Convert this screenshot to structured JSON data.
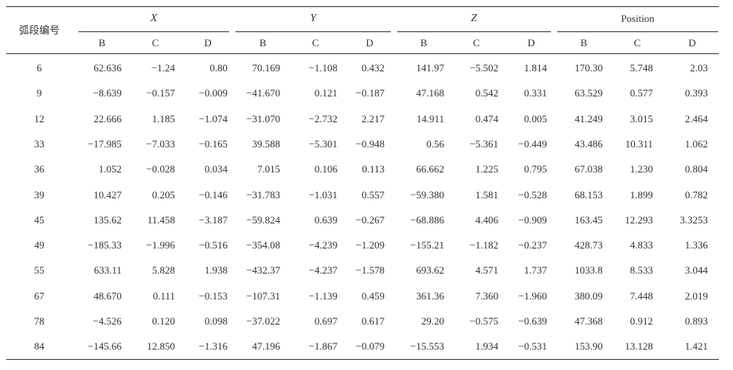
{
  "table": {
    "header": {
      "corner": "弧段编号",
      "groups": [
        {
          "label": "X",
          "columns": [
            "B",
            "C",
            "D"
          ]
        },
        {
          "label": "Y",
          "columns": [
            "B",
            "C",
            "D"
          ]
        },
        {
          "label": "Z",
          "columns": [
            "B",
            "C",
            "D"
          ]
        },
        {
          "label": "Position",
          "columns": [
            "B",
            "C",
            "D"
          ]
        }
      ]
    },
    "rows": [
      [
        "6",
        "62.636",
        "−1.24",
        "0.80",
        "70.169",
        "−1.108",
        "0.432",
        "141.97",
        "−5.502",
        "1.814",
        "170.30",
        "5.748",
        "2.03"
      ],
      [
        "9",
        "−8.639",
        "−0.157",
        "−0.009",
        "−41.670",
        "0.121",
        "−0.187",
        "47.168",
        "0.542",
        "0.331",
        "63.529",
        "0.577",
        "0.393"
      ],
      [
        "12",
        "22.666",
        "1.185",
        "−1.074",
        "−31.070",
        "−2.732",
        "2.217",
        "14.911",
        "0.474",
        "0.005",
        "41.249",
        "3.015",
        "2.464"
      ],
      [
        "33",
        "−17.985",
        "−7.033",
        "−0.165",
        "39.588",
        "−5.301",
        "−0.948",
        "0.56",
        "−5.361",
        "−0.449",
        "43.486",
        "10.311",
        "1.062"
      ],
      [
        "36",
        "1.052",
        "−0.028",
        "0.034",
        "7.015",
        "0.106",
        "0.113",
        "66.662",
        "1.225",
        "0.795",
        "67.038",
        "1.230",
        "0.804"
      ],
      [
        "39",
        "10.427",
        "0.205",
        "−0.146",
        "−31.783",
        "−1.031",
        "0.557",
        "−59.380",
        "1.581",
        "−0.528",
        "68.153",
        "1.899",
        "0.782"
      ],
      [
        "45",
        "135.62",
        "11.458",
        "−3.187",
        "−59.824",
        "0.639",
        "−0.267",
        "−68.886",
        "4.406",
        "−0.909",
        "163.45",
        "12.293",
        "3.3253"
      ],
      [
        "49",
        "−185.33",
        "−1.996",
        "−0.516",
        "−354.08",
        "−4.239",
        "−1.209",
        "−155.21",
        "−1.182",
        "−0.237",
        "428.73",
        "4.833",
        "1.336"
      ],
      [
        "55",
        "633.11",
        "5.828",
        "1.938",
        "−432.37",
        "−4.237",
        "−1.578",
        "693.62",
        "4.571",
        "1.737",
        "1033.8",
        "8.533",
        "3.044"
      ],
      [
        "67",
        "48.670",
        "0.111",
        "−0.153",
        "−107.31",
        "−1.139",
        "0.459",
        "361.36",
        "7.360",
        "−1.960",
        "380.09",
        "7.448",
        "2.019"
      ],
      [
        "78",
        "−4.526",
        "0.120",
        "0.098",
        "−37.022",
        "0.697",
        "0.617",
        "29.20",
        "−0.575",
        "−0.639",
        "47.368",
        "0.912",
        "0.893"
      ],
      [
        "84",
        "−145.66",
        "12.850",
        "−1.316",
        "47.196",
        "−1.867",
        "−0.079",
        "−15.553",
        "1.934",
        "−0.531",
        "153.90",
        "13.128",
        "1.421"
      ]
    ]
  }
}
